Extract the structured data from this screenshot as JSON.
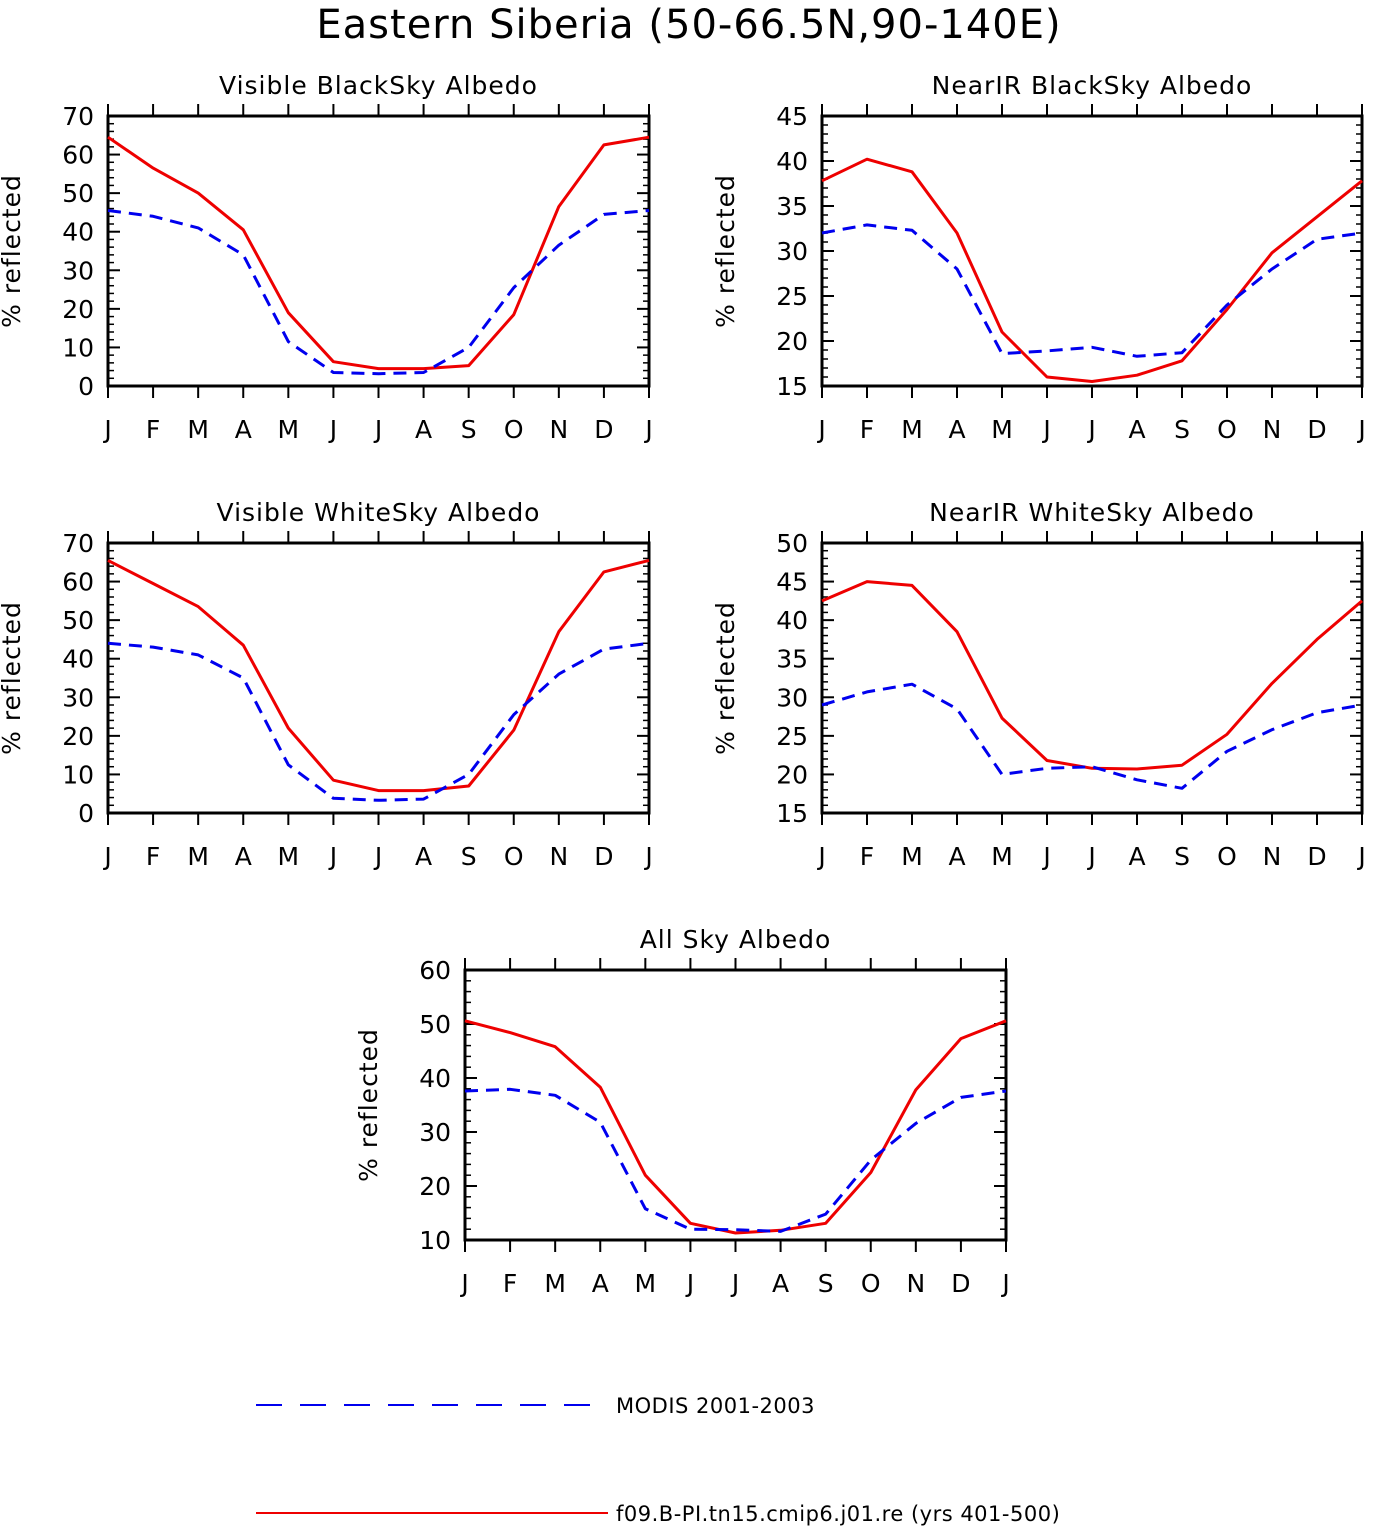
{
  "title": "Eastern Siberia (50-66.5N,90-140E)",
  "legend": [
    {
      "label": "MODIS 2001-2003",
      "color": "#0000ee",
      "dashed": true
    },
    {
      "label": "f09.B-PI.tn15.cmip6.j01.re (yrs 401-500)",
      "color": "#ee0000",
      "dashed": false
    }
  ],
  "chart_data": [
    {
      "type": "line",
      "title": "Visible BlackSky Albedo",
      "ylabel": "% reflected",
      "xlabel": "",
      "categories": [
        "J",
        "F",
        "M",
        "A",
        "M",
        "J",
        "J",
        "A",
        "S",
        "O",
        "N",
        "D",
        "J"
      ],
      "ylim": [
        0,
        70
      ],
      "yticks": [
        0,
        10,
        20,
        30,
        40,
        50,
        60,
        70
      ],
      "grid": false,
      "series": [
        {
          "name": "f09.B-PI.tn15.cmip6.j01.re (yrs 401-500)",
          "color": "#ee0000",
          "dashed": false,
          "values": [
            64.5,
            56.5,
            50.0,
            40.5,
            19.0,
            6.3,
            4.5,
            4.5,
            5.3,
            18.5,
            46.5,
            62.5,
            64.5
          ]
        },
        {
          "name": "MODIS 2001-2003",
          "color": "#0000ee",
          "dashed": true,
          "values": [
            45.5,
            44.0,
            41.0,
            34.0,
            11.5,
            3.5,
            3.2,
            3.5,
            10.0,
            25.5,
            36.5,
            44.5,
            45.5
          ]
        }
      ]
    },
    {
      "type": "line",
      "title": "NearIR BlackSky Albedo",
      "ylabel": "% reflected",
      "xlabel": "",
      "categories": [
        "J",
        "F",
        "M",
        "A",
        "M",
        "J",
        "J",
        "A",
        "S",
        "O",
        "N",
        "D",
        "J"
      ],
      "ylim": [
        15,
        45
      ],
      "yticks": [
        15,
        20,
        25,
        30,
        35,
        40,
        45
      ],
      "grid": false,
      "series": [
        {
          "name": "f09.B-PI.tn15.cmip6.j01.re (yrs 401-500)",
          "color": "#ee0000",
          "dashed": false,
          "values": [
            37.8,
            40.2,
            38.8,
            32.0,
            21.0,
            16.0,
            15.5,
            16.2,
            17.8,
            23.5,
            29.8,
            33.8,
            37.8
          ]
        },
        {
          "name": "MODIS 2001-2003",
          "color": "#0000ee",
          "dashed": true,
          "values": [
            32.0,
            32.9,
            32.3,
            28.0,
            18.6,
            18.9,
            19.3,
            18.3,
            18.7,
            24.0,
            28.0,
            31.3,
            32.0
          ]
        }
      ]
    },
    {
      "type": "line",
      "title": "Visible WhiteSky Albedo",
      "ylabel": "% reflected",
      "xlabel": "",
      "categories": [
        "J",
        "F",
        "M",
        "A",
        "M",
        "J",
        "J",
        "A",
        "S",
        "O",
        "N",
        "D",
        "J"
      ],
      "ylim": [
        0,
        70
      ],
      "yticks": [
        0,
        10,
        20,
        30,
        40,
        50,
        60,
        70
      ],
      "grid": false,
      "series": [
        {
          "name": "f09.B-PI.tn15.cmip6.j01.re (yrs 401-500)",
          "color": "#ee0000",
          "dashed": false,
          "values": [
            65.5,
            59.5,
            53.5,
            43.5,
            22.0,
            8.5,
            5.8,
            5.8,
            7.0,
            21.5,
            47.0,
            62.5,
            65.5
          ]
        },
        {
          "name": "MODIS 2001-2003",
          "color": "#0000ee",
          "dashed": true,
          "values": [
            44.0,
            43.0,
            41.0,
            35.0,
            12.5,
            3.8,
            3.3,
            3.6,
            10.0,
            25.5,
            36.0,
            42.5,
            44.0
          ]
        }
      ]
    },
    {
      "type": "line",
      "title": "NearIR WhiteSky Albedo",
      "ylabel": "% reflected",
      "xlabel": "",
      "categories": [
        "J",
        "F",
        "M",
        "A",
        "M",
        "J",
        "J",
        "A",
        "S",
        "O",
        "N",
        "D",
        "J"
      ],
      "ylim": [
        15,
        50
      ],
      "yticks": [
        15,
        20,
        25,
        30,
        35,
        40,
        45,
        50
      ],
      "grid": false,
      "series": [
        {
          "name": "f09.B-PI.tn15.cmip6.j01.re (yrs 401-500)",
          "color": "#ee0000",
          "dashed": false,
          "values": [
            42.5,
            45.0,
            44.5,
            38.5,
            27.3,
            21.8,
            20.8,
            20.7,
            21.2,
            25.2,
            31.8,
            37.5,
            42.5
          ]
        },
        {
          "name": "MODIS 2001-2003",
          "color": "#0000ee",
          "dashed": true,
          "values": [
            29.0,
            30.7,
            31.7,
            28.5,
            20.0,
            20.8,
            21.0,
            19.3,
            18.2,
            23.0,
            25.8,
            28.0,
            29.0
          ]
        }
      ]
    },
    {
      "type": "line",
      "title": "All Sky Albedo",
      "ylabel": "% reflected",
      "xlabel": "",
      "categories": [
        "J",
        "F",
        "M",
        "A",
        "M",
        "J",
        "J",
        "A",
        "S",
        "O",
        "N",
        "D",
        "J"
      ],
      "ylim": [
        10,
        60
      ],
      "yticks": [
        10,
        20,
        30,
        40,
        50,
        60
      ],
      "grid": false,
      "series": [
        {
          "name": "f09.B-PI.tn15.cmip6.j01.re (yrs 401-500)",
          "color": "#ee0000",
          "dashed": false,
          "values": [
            50.6,
            48.4,
            45.8,
            38.3,
            22.0,
            13.1,
            11.3,
            11.8,
            13.1,
            22.5,
            37.8,
            47.3,
            50.6
          ]
        },
        {
          "name": "MODIS 2001-2003",
          "color": "#0000ee",
          "dashed": true,
          "values": [
            37.6,
            37.9,
            36.8,
            31.8,
            15.8,
            12.0,
            11.9,
            11.6,
            14.8,
            24.8,
            31.6,
            36.4,
            37.6
          ]
        }
      ]
    }
  ]
}
